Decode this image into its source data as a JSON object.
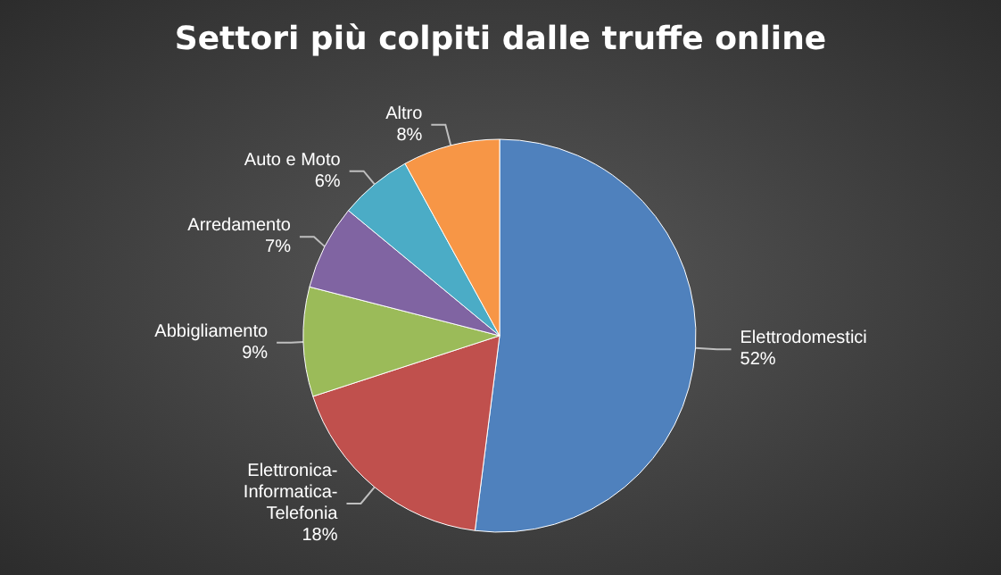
{
  "chart_data": {
    "type": "pie",
    "title": "Settori più colpiti dalle truffe online",
    "categories": [
      "Elettrodomestici",
      "Elettronica-Informatica-Telefonia",
      "Abbigliamento",
      "Arredamento",
      "Auto e Moto",
      "Altro"
    ],
    "values": [
      52,
      18,
      9,
      7,
      6,
      8
    ],
    "value_labels": [
      "52%",
      "18%",
      "9%",
      "7%",
      "6%",
      "8%"
    ],
    "colors": [
      "#4f81bd",
      "#c0504d",
      "#9bbb59",
      "#8064a2",
      "#4bacc6",
      "#f79646"
    ],
    "legend": false
  }
}
